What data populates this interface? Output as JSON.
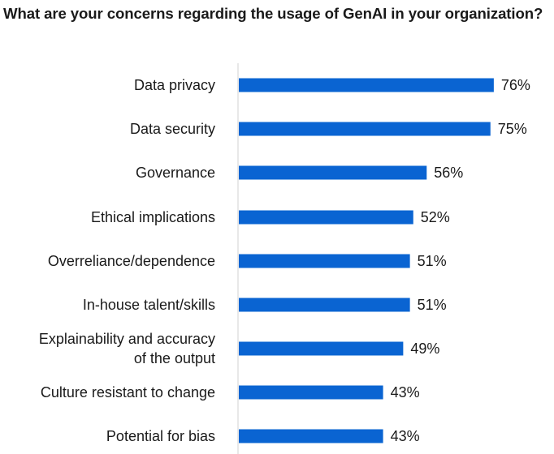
{
  "chart_data": {
    "type": "bar",
    "orientation": "horizontal",
    "title": "What are your concerns regarding the usage of GenAI in your organization?",
    "xlabel": "",
    "ylabel": "",
    "categories": [
      [
        "Data privacy"
      ],
      [
        "Data security"
      ],
      [
        "Governance"
      ],
      [
        "Ethical implications"
      ],
      [
        "Overreliance/dependence"
      ],
      [
        "In-house talent/skills"
      ],
      [
        "Explainability and accuracy",
        "of the output"
      ],
      [
        "Culture resistant to change"
      ],
      [
        "Potential for bias"
      ]
    ],
    "values": [
      76,
      75,
      56,
      52,
      51,
      51,
      49,
      43,
      43
    ],
    "value_labels": [
      "76%",
      "75%",
      "56%",
      "52%",
      "51%",
      "51%",
      "49%",
      "43%",
      "43%"
    ],
    "unit": "%",
    "xlim": [
      0,
      100
    ],
    "grid": false,
    "bar_color": "#0a64d2",
    "axis_color": "#d0d0d0"
  }
}
